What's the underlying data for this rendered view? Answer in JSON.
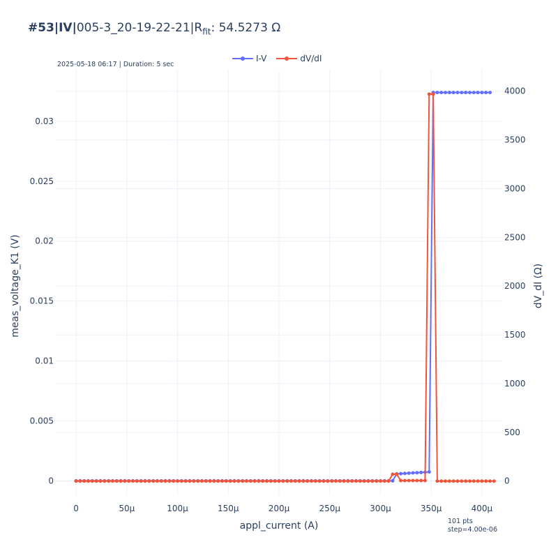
{
  "title": {
    "prefix": "#53|IV|",
    "name": "005-3_20-19-22-21|R",
    "sub": "fit",
    "value": ": 54.5273 Ω"
  },
  "subnote": "2025-05-18 06:17 | Duration: 5 sec",
  "footnote": {
    "line1": "101 pts",
    "line2": "step=4.00e-06"
  },
  "colors": {
    "iv": "#636efa",
    "dvdi": "#ef553b",
    "grid": "#ebf0f8",
    "text": "#2a3f5f"
  },
  "chart_data": {
    "type": "line",
    "xlabel": "appl_current (A)",
    "ylabel": "meas_voltage_K1 (V)",
    "y2label": "dV_dI (Ω)",
    "xlim": [
      -2e-05,
      0.00042
    ],
    "ylim": [
      -0.0012,
      0.0343
    ],
    "y2lim": [
      -145,
      4220
    ],
    "x_ticks": [
      {
        "v": 0,
        "label": "0"
      },
      {
        "v": 5e-05,
        "label": "50µ"
      },
      {
        "v": 0.0001,
        "label": "100µ"
      },
      {
        "v": 0.00015,
        "label": "150µ"
      },
      {
        "v": 0.0002,
        "label": "200µ"
      },
      {
        "v": 0.00025,
        "label": "250µ"
      },
      {
        "v": 0.0003,
        "label": "300µ"
      },
      {
        "v": 0.00035,
        "label": "350µ"
      },
      {
        "v": 0.0004,
        "label": "400µ"
      }
    ],
    "y_ticks": [
      {
        "v": 0,
        "label": "0"
      },
      {
        "v": 0.005,
        "label": "0.005"
      },
      {
        "v": 0.01,
        "label": "0.01"
      },
      {
        "v": 0.015,
        "label": "0.015"
      },
      {
        "v": 0.02,
        "label": "0.02"
      },
      {
        "v": 0.025,
        "label": "0.025"
      },
      {
        "v": 0.03,
        "label": "0.03"
      }
    ],
    "y2_ticks": [
      {
        "v": 0,
        "label": "0"
      },
      {
        "v": 500,
        "label": "500"
      },
      {
        "v": 1000,
        "label": "1000"
      },
      {
        "v": 1500,
        "label": "1500"
      },
      {
        "v": 2000,
        "label": "2000"
      },
      {
        "v": 2500,
        "label": "2500"
      },
      {
        "v": 3000,
        "label": "3000"
      },
      {
        "v": 3500,
        "label": "3500"
      },
      {
        "v": 4000,
        "label": "4000"
      }
    ],
    "x_start": 0,
    "x_step": 4e-06,
    "series": [
      {
        "name": "I-V",
        "axis": "y",
        "values": [
          0,
          0,
          0,
          0,
          0,
          0,
          0,
          0,
          0,
          0,
          0,
          0,
          0,
          0,
          0,
          0,
          0,
          0,
          0,
          0,
          0,
          0,
          0,
          0,
          0,
          0,
          0,
          0,
          0,
          0,
          0,
          0,
          0,
          0,
          0,
          0,
          0,
          0,
          0,
          0,
          0,
          0,
          0,
          0,
          0,
          0,
          0,
          0,
          0,
          0,
          0,
          0,
          0,
          0,
          0,
          0,
          0,
          0,
          0,
          0,
          0,
          0,
          0,
          0,
          0,
          0,
          0,
          0,
          0,
          0,
          0,
          0,
          0,
          0,
          0,
          0,
          0,
          0,
          0,
          0.00058,
          0.0006,
          0.00062,
          0.00064,
          0.00066,
          0.00068,
          0.0007,
          0.00072,
          0.00074,
          0.0324,
          0.0324,
          0.0324,
          0.0324,
          0.0324,
          0.0324,
          0.0324,
          0.0324,
          0.0324,
          0.0324,
          0.0324,
          0.0324,
          0.0324,
          0.0324,
          0.0324
        ]
      },
      {
        "name": "dV/dI",
        "axis": "y2",
        "values": [
          0,
          0,
          0,
          0,
          0,
          0,
          0,
          0,
          0,
          0,
          0,
          0,
          0,
          0,
          0,
          0,
          0,
          0,
          0,
          0,
          0,
          0,
          0,
          0,
          0,
          0,
          0,
          0,
          0,
          0,
          0,
          0,
          0,
          0,
          0,
          0,
          0,
          0,
          0,
          0,
          0,
          0,
          0,
          0,
          0,
          0,
          0,
          0,
          0,
          0,
          0,
          0,
          0,
          0,
          0,
          0,
          0,
          0,
          0,
          0,
          0,
          0,
          0,
          0,
          0,
          0,
          0,
          0,
          0,
          0,
          0,
          0,
          0,
          0,
          0,
          0,
          0,
          0,
          70,
          70,
          5,
          5,
          5,
          5,
          5,
          5,
          5,
          3970,
          3970,
          0,
          0,
          0,
          0,
          0,
          0,
          0,
          0,
          0,
          0,
          0,
          0,
          0,
          0,
          0
        ]
      }
    ]
  }
}
